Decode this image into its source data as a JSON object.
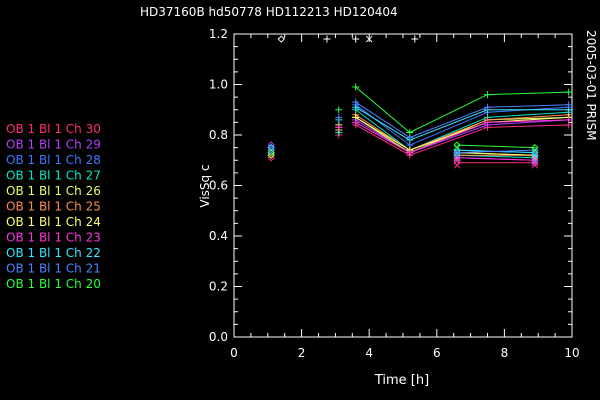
{
  "chart_data": {
    "type": "scatter",
    "title": "HD37160B hd50778   HD112213 HD120404",
    "side_label": "2005-03-01 PRISM",
    "xlabel": "Time [h]",
    "ylabel": "VisSq c",
    "xlim": [
      0,
      10
    ],
    "ylim": [
      0.0,
      1.2
    ],
    "x_ticks": [
      0,
      2,
      4,
      6,
      8,
      10
    ],
    "y_ticks": [
      0.0,
      0.2,
      0.4,
      0.6,
      0.8,
      1.0,
      1.2
    ],
    "x_tick_labels": [
      "0",
      "2",
      "4",
      "6",
      "8",
      "10"
    ],
    "y_tick_labels": [
      "0.0",
      "0.2",
      "0.4",
      "0.6",
      "0.8",
      "1.0",
      "1.2"
    ],
    "grid": false,
    "legend_position": "left",
    "calibrator_markers_y": 1.18,
    "calibrator_markers": [
      {
        "symbol": "diamond",
        "x": 1.4
      },
      {
        "symbol": "plus",
        "x": 2.75
      },
      {
        "symbol": "plus",
        "x": 3.6
      },
      {
        "symbol": "cross",
        "x": 4.0
      },
      {
        "symbol": "plus",
        "x": 5.35
      }
    ],
    "x_diamond_group": [
      1.1,
      6.6,
      8.9
    ],
    "x_plus_group": [
      3.1,
      3.6,
      5.2,
      7.5,
      9.9
    ],
    "series": [
      {
        "name": "OB 1 Bl 1 Ch 30",
        "color": "#ff2a7f",
        "diamond_y": [
          0.71,
          0.69,
          0.69
        ],
        "plus_y": [
          0.8,
          0.84,
          0.72,
          0.83,
          0.84
        ]
      },
      {
        "name": "OB 1 Bl 1 Ch 29",
        "color": "#b43cff",
        "diamond_y": [
          0.76,
          0.71,
          0.7
        ],
        "plus_y": [
          0.81,
          0.86,
          0.73,
          0.84,
          0.86
        ]
      },
      {
        "name": "OB 1 Bl 1 Ch 28",
        "color": "#3c78ff",
        "diamond_y": [
          0.75,
          0.74,
          0.73
        ],
        "plus_y": [
          0.82,
          0.92,
          0.76,
          0.89,
          0.91
        ]
      },
      {
        "name": "OB 1 Bl 1 Ch 27",
        "color": "#00e6c8",
        "diamond_y": [
          0.74,
          0.72,
          0.71
        ],
        "plus_y": [
          0.81,
          0.9,
          0.74,
          0.87,
          0.89
        ]
      },
      {
        "name": "OB 1 Bl 1 Ch 26",
        "color": "#e6ff64",
        "diamond_y": [
          0.72,
          0.73,
          0.72
        ],
        "plus_y": [
          0.82,
          0.87,
          0.73,
          0.86,
          0.87
        ]
      },
      {
        "name": "OB 1 Bl 1 Ch 25",
        "color": "#ff8c50",
        "diamond_y": [
          0.73,
          0.72,
          0.72
        ],
        "plus_y": [
          0.83,
          0.88,
          0.74,
          0.86,
          0.88
        ]
      },
      {
        "name": "OB 1 Bl 1 Ch 24",
        "color": "#ffff6e",
        "diamond_y": [
          0.73,
          0.73,
          0.72
        ],
        "plus_y": [
          0.84,
          0.87,
          0.74,
          0.85,
          0.87
        ]
      },
      {
        "name": "OB 1 Bl 1 Ch 23",
        "color": "#ff32dc",
        "diamond_y": [
          0.74,
          0.71,
          0.7
        ],
        "plus_y": [
          0.83,
          0.85,
          0.73,
          0.85,
          0.86
        ]
      },
      {
        "name": "OB 1 Bl 1 Ch 22",
        "color": "#32e6ff",
        "diamond_y": [
          0.75,
          0.74,
          0.73
        ],
        "plus_y": [
          0.86,
          0.91,
          0.78,
          0.9,
          0.9
        ]
      },
      {
        "name": "OB 1 Bl 1 Ch 21",
        "color": "#4b82ff",
        "diamond_y": [
          0.74,
          0.73,
          0.74
        ],
        "plus_y": [
          0.87,
          0.93,
          0.79,
          0.91,
          0.92
        ]
      },
      {
        "name": "OB 1 Bl 1 Ch 20",
        "color": "#28ff3c",
        "diamond_y": [
          0.73,
          0.76,
          0.75
        ],
        "plus_y": [
          0.9,
          0.99,
          0.81,
          0.96,
          0.97
        ]
      }
    ]
  }
}
